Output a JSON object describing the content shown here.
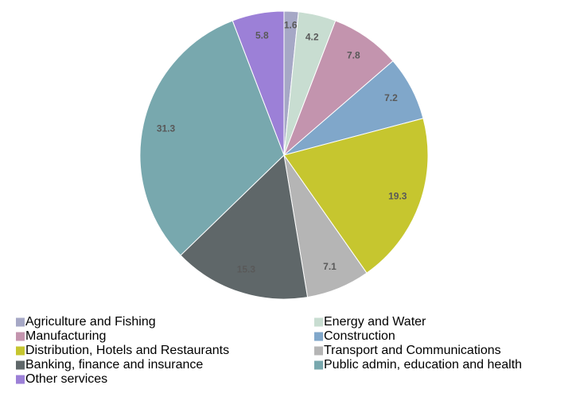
{
  "chart_data": {
    "type": "pie",
    "categories": [
      "Agriculture and Fishing",
      "Energy and Water",
      "Manufacturing",
      "Construction",
      "Distribution, Hotels and Restaurants",
      "Transport and Communications",
      "Banking, finance and insurance",
      "Public admin, education and health",
      "Other services"
    ],
    "values": [
      1.6,
      4.2,
      7.8,
      7.2,
      19.3,
      7.1,
      15.3,
      31.3,
      5.8
    ],
    "colors": [
      "#a6a8c6",
      "#c8ddd1",
      "#c394ae",
      "#80a7ca",
      "#c6c62f",
      "#b5b5b5",
      "#5f6769",
      "#78a8ae",
      "#9c80d7"
    ]
  }
}
